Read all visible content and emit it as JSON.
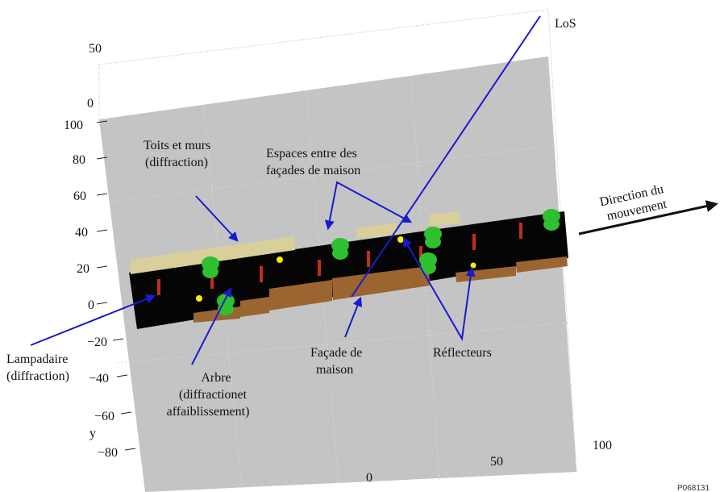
{
  "colors": {
    "ground": "#c4c4c4",
    "road": "#050505",
    "facade": "#9a6530",
    "roof": "#d8cf9a",
    "tree": "#2fc02f",
    "lamp": "#c03018",
    "reflector": "#ffee00",
    "pointer": "#1a1ad0"
  },
  "axes": {
    "y_label": "y",
    "z_ticks": [
      "50",
      "0"
    ],
    "y_ticks": [
      "100",
      "80",
      "60",
      "40",
      "20",
      "0",
      "−20",
      "−40",
      "−60",
      "−80"
    ],
    "x_ticks": [
      "0",
      "50",
      "100"
    ]
  },
  "labels": {
    "los": "LoS",
    "direction_line1": "Direction du",
    "direction_line2": "mouvement",
    "roofs_line1": "Toits et murs",
    "roofs_line2": "(diffraction)",
    "gaps_line1": "Espaces entre des",
    "gaps_line2": "façades de maison",
    "lamp_line1": "Lampadaire",
    "lamp_line2": "(diffraction)",
    "tree_line1": "Arbre",
    "tree_line2": "(diffractionet",
    "tree_line3": "affaiblissement)",
    "facade_line1": "Façade de",
    "facade_line2": "maison",
    "reflectors": "Réflecteurs",
    "figure_ref": "P068131"
  }
}
